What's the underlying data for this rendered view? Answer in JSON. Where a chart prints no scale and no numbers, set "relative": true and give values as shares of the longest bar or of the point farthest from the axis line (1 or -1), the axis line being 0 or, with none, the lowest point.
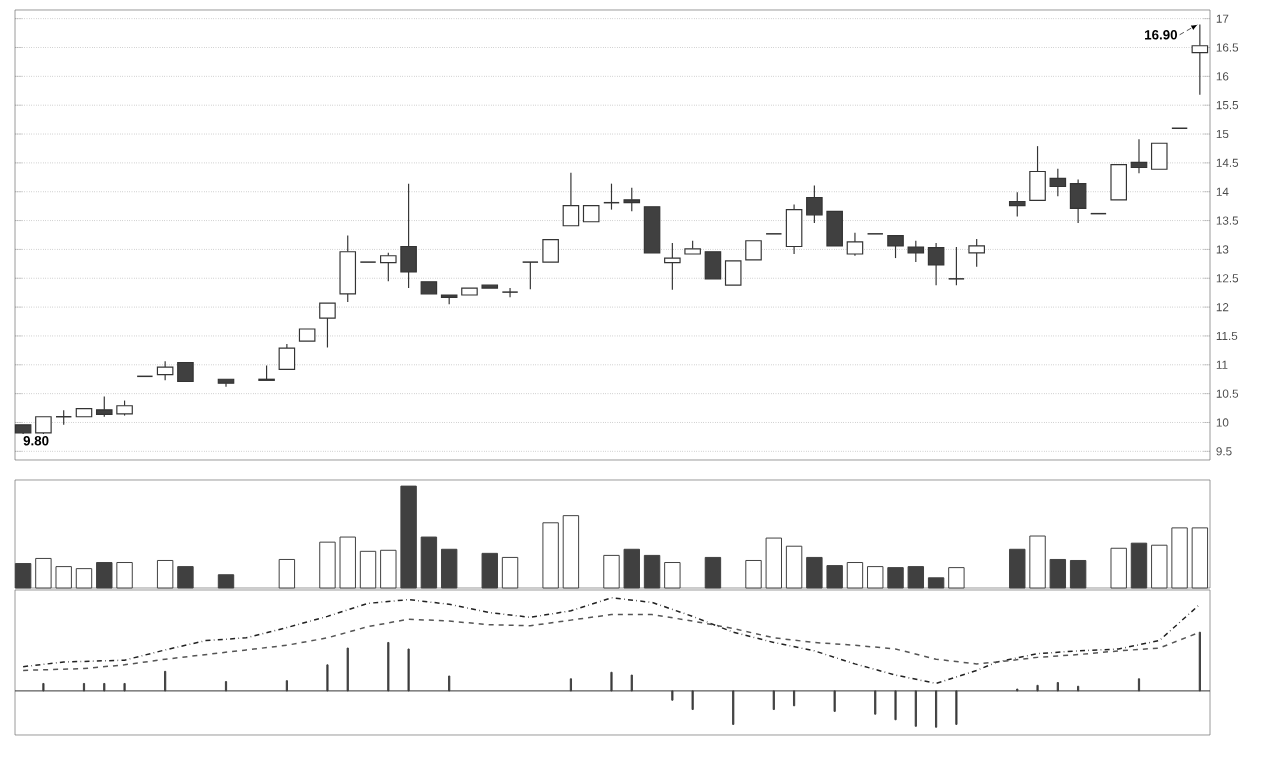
{
  "chart_data": [
    {
      "type": "candlestick",
      "categories": [
        null,
        null,
        null,
        null,
        null,
        null,
        null,
        null,
        null,
        null,
        null,
        null,
        null,
        null,
        null,
        null,
        null,
        null,
        null,
        null,
        null,
        null,
        null,
        null,
        null,
        null,
        null,
        null,
        null,
        null,
        null,
        null,
        null,
        null,
        null,
        null,
        null,
        null,
        null,
        null,
        null,
        null,
        null,
        null,
        null,
        null,
        null,
        null,
        null,
        null,
        null,
        null,
        null,
        null,
        null,
        null,
        null,
        null,
        null
      ],
      "ohlc": [
        [
          9.96,
          9.96,
          9.8,
          9.82
        ],
        [
          9.82,
          10.1,
          9.8,
          10.1
        ],
        [
          10.1,
          10.21,
          9.96,
          10.1
        ],
        [
          10.1,
          10.24,
          10.1,
          10.24
        ],
        [
          10.22,
          10.45,
          10.1,
          10.14
        ],
        [
          10.15,
          10.38,
          10.12,
          10.29
        ],
        [
          10.8,
          10.8,
          10.8,
          10.8
        ],
        [
          10.83,
          11.06,
          10.73,
          10.96
        ],
        [
          11.04,
          11.04,
          10.71,
          10.71
        ],
        null,
        [
          10.75,
          10.75,
          10.62,
          10.68
        ],
        null,
        [
          10.73,
          10.99,
          10.73,
          10.75
        ],
        [
          10.92,
          11.36,
          10.92,
          11.29
        ],
        [
          11.41,
          11.62,
          11.41,
          11.62
        ],
        [
          11.81,
          12.07,
          11.3,
          12.07
        ],
        [
          12.23,
          13.24,
          12.09,
          12.96
        ],
        [
          12.78,
          12.78,
          12.78,
          12.78
        ],
        [
          12.77,
          12.94,
          12.45,
          12.89
        ],
        [
          13.05,
          14.14,
          12.33,
          12.61
        ],
        [
          12.44,
          12.44,
          12.23,
          12.23
        ],
        [
          12.21,
          12.21,
          12.05,
          12.17
        ],
        [
          12.21,
          12.33,
          12.21,
          12.33
        ],
        [
          12.38,
          12.38,
          12.33,
          12.33
        ],
        [
          12.26,
          12.33,
          12.17,
          12.26
        ],
        [
          12.78,
          12.78,
          12.31,
          12.78
        ],
        [
          12.78,
          13.17,
          12.78,
          13.17
        ],
        [
          13.41,
          14.33,
          13.41,
          13.76
        ],
        [
          13.48,
          13.76,
          13.48,
          13.76
        ],
        [
          13.81,
          14.14,
          13.69,
          13.81
        ],
        [
          13.86,
          14.07,
          13.66,
          13.81
        ],
        [
          13.74,
          13.74,
          12.94,
          12.94
        ],
        [
          12.77,
          13.11,
          12.3,
          12.85
        ],
        [
          12.92,
          13.15,
          12.92,
          13.01
        ],
        [
          12.96,
          12.96,
          12.49,
          12.49
        ],
        [
          12.38,
          12.8,
          12.38,
          12.8
        ],
        [
          12.82,
          13.15,
          12.82,
          13.15
        ],
        [
          13.27,
          13.27,
          13.27,
          13.27
        ],
        [
          13.05,
          13.78,
          12.92,
          13.69
        ],
        [
          13.9,
          14.11,
          13.46,
          13.6
        ],
        [
          13.66,
          13.66,
          13.06,
          13.06
        ],
        [
          12.92,
          13.29,
          12.89,
          13.13
        ],
        [
          13.27,
          13.27,
          13.27,
          13.27
        ],
        [
          13.24,
          13.24,
          12.85,
          13.06
        ],
        [
          13.04,
          13.15,
          12.78,
          12.94
        ],
        [
          13.03,
          13.11,
          12.38,
          12.73
        ],
        [
          12.49,
          13.04,
          12.38,
          12.49
        ],
        [
          12.94,
          13.18,
          12.7,
          13.06
        ],
        null,
        [
          13.83,
          13.99,
          13.57,
          13.76
        ],
        [
          13.85,
          14.79,
          13.85,
          14.35
        ],
        [
          14.23,
          14.4,
          13.92,
          14.09
        ],
        [
          14.14,
          14.21,
          13.46,
          13.71
        ],
        [
          13.62,
          13.62,
          13.62,
          13.62
        ],
        [
          13.86,
          14.47,
          13.86,
          14.47
        ],
        [
          14.51,
          14.91,
          14.32,
          14.42
        ],
        [
          14.39,
          14.84,
          14.39,
          14.84
        ],
        [
          15.1,
          15.1,
          15.1,
          15.1
        ],
        [
          16.41,
          16.9,
          15.68,
          16.53
        ]
      ],
      "ylim": [
        9.35,
        17.15
      ],
      "yticks": [
        9.5,
        10,
        10.5,
        11,
        11.5,
        12,
        12.5,
        13,
        13.5,
        14,
        14.5,
        15,
        15.5,
        16,
        16.5,
        17
      ],
      "grid": "y",
      "annotations": [
        "16.90",
        "9.80"
      ]
    },
    {
      "type": "bar",
      "relative": true,
      "categories": [
        null,
        null,
        null,
        null,
        null,
        null,
        null,
        null,
        null,
        null,
        null,
        null,
        null,
        null,
        null,
        null,
        null,
        null,
        null,
        null,
        null,
        null,
        null,
        null,
        null,
        null,
        null,
        null,
        null,
        null,
        null,
        null,
        null,
        null,
        null,
        null,
        null,
        null,
        null,
        null,
        null,
        null,
        null,
        null,
        null,
        null,
        null,
        null,
        null,
        null,
        null,
        null,
        null,
        null,
        null,
        null,
        null,
        null,
        null
      ],
      "values": [
        0.24,
        0.29,
        0.21,
        0.19,
        0.25,
        0.25,
        null,
        0.27,
        0.21,
        null,
        0.13,
        null,
        null,
        0.28,
        null,
        0.45,
        0.5,
        0.36,
        0.37,
        1,
        0.5,
        0.38,
        null,
        0.34,
        0.3,
        null,
        0.64,
        0.71,
        null,
        0.32,
        0.38,
        0.32,
        0.25,
        null,
        0.3,
        null,
        0.27,
        0.49,
        0.41,
        0.3,
        0.22,
        0.25,
        0.21,
        0.2,
        0.21,
        0.1,
        0.2,
        null,
        null,
        0.38,
        0.51,
        0.28,
        0.27,
        null,
        0.39,
        0.44,
        0.42,
        0.59,
        0.59
      ],
      "colors": [
        "#404040",
        "#ffffff",
        "#ffffff",
        "#ffffff",
        "#404040",
        "#ffffff",
        null,
        "#ffffff",
        "#404040",
        null,
        "#404040",
        null,
        null,
        "#ffffff",
        null,
        "#ffffff",
        "#ffffff",
        "#ffffff",
        "#ffffff",
        "#404040",
        "#404040",
        "#404040",
        null,
        "#404040",
        "#ffffff",
        null,
        "#ffffff",
        "#ffffff",
        null,
        "#ffffff",
        "#404040",
        "#404040",
        "#ffffff",
        null,
        "#404040",
        null,
        "#ffffff",
        "#ffffff",
        "#ffffff",
        "#404040",
        "#404040",
        "#ffffff",
        "#ffffff",
        "#404040",
        "#404040",
        "#404040",
        "#ffffff",
        "#ffffff",
        null,
        "#404040",
        "#ffffff",
        "#404040",
        "#404040",
        null,
        "#ffffff",
        "#404040",
        "#ffffff",
        "#ffffff",
        "#ffffff"
      ]
    },
    {
      "type": "bar",
      "relative": true,
      "categories": [
        null,
        null,
        null,
        null,
        null,
        null,
        null,
        null,
        null,
        null,
        null,
        null,
        null,
        null,
        null,
        null,
        null,
        null,
        null,
        null,
        null,
        null,
        null,
        null,
        null,
        null,
        null,
        null,
        null,
        null,
        null,
        null,
        null,
        null,
        null,
        null,
        null,
        null,
        null,
        null,
        null,
        null,
        null,
        null,
        null,
        null,
        null,
        null,
        null,
        null,
        null,
        null,
        null,
        null,
        null,
        null,
        null,
        null,
        null
      ],
      "series": [
        {
          "type": "bar",
          "color": "#333333",
          "values": [
            null,
            0.08,
            null,
            0.08,
            0.08,
            0.08,
            null,
            0.21,
            null,
            null,
            0.1,
            null,
            null,
            0.11,
            null,
            0.28,
            0.46,
            null,
            0.52,
            0.45,
            null,
            0.16,
            null,
            null,
            null,
            null,
            null,
            0.13,
            null,
            0.2,
            0.17,
            null,
            -0.1,
            -0.2,
            null,
            -0.36,
            null,
            -0.2,
            -0.16,
            null,
            -0.22,
            null,
            -0.25,
            -0.31,
            -0.38,
            -0.39,
            -0.36,
            null,
            null,
            0.02,
            0.06,
            0.09,
            0.05,
            null,
            null,
            0.13,
            null,
            null,
            0.63
          ]
        },
        {
          "type": "line",
          "color": "#222222",
          "line_style": "dotted",
          "values": [
            0.26,
            null,
            0.31,
            null,
            null,
            0.33,
            null,
            0.44,
            null,
            0.54,
            null,
            0.57,
            null,
            0.68,
            null,
            0.8,
            null,
            0.94,
            null,
            0.98,
            null,
            0.93,
            null,
            0.84,
            null,
            0.79,
            null,
            0.86,
            null,
            1,
            null,
            0.95,
            null,
            0.8,
            null,
            0.63,
            null,
            0.52,
            null,
            0.43,
            null,
            0.29,
            null,
            0.17,
            null,
            0.08,
            null,
            0.22,
            0.31,
            null,
            0.4,
            null,
            0.43,
            null,
            0.45,
            null,
            0.54,
            null,
            0.93
          ]
        },
        {
          "type": "line",
          "color": "#555555",
          "line_style": "dashed",
          "values": [
            0.22,
            null,
            null,
            0.24,
            null,
            0.28,
            null,
            0.34,
            null,
            0.39,
            null,
            0.44,
            null,
            0.49,
            null,
            0.57,
            null,
            0.69,
            null,
            0.77,
            null,
            0.75,
            null,
            0.71,
            null,
            0.7,
            null,
            0.76,
            null,
            0.82,
            null,
            0.82,
            null,
            0.75,
            null,
            0.67,
            null,
            0.57,
            null,
            0.52,
            null,
            0.49,
            null,
            0.45,
            null,
            0.34,
            null,
            0.29,
            0.31,
            null,
            0.36,
            null,
            0.39,
            null,
            0.43,
            null,
            0.46,
            null,
            0.63
          ]
        }
      ]
    }
  ]
}
